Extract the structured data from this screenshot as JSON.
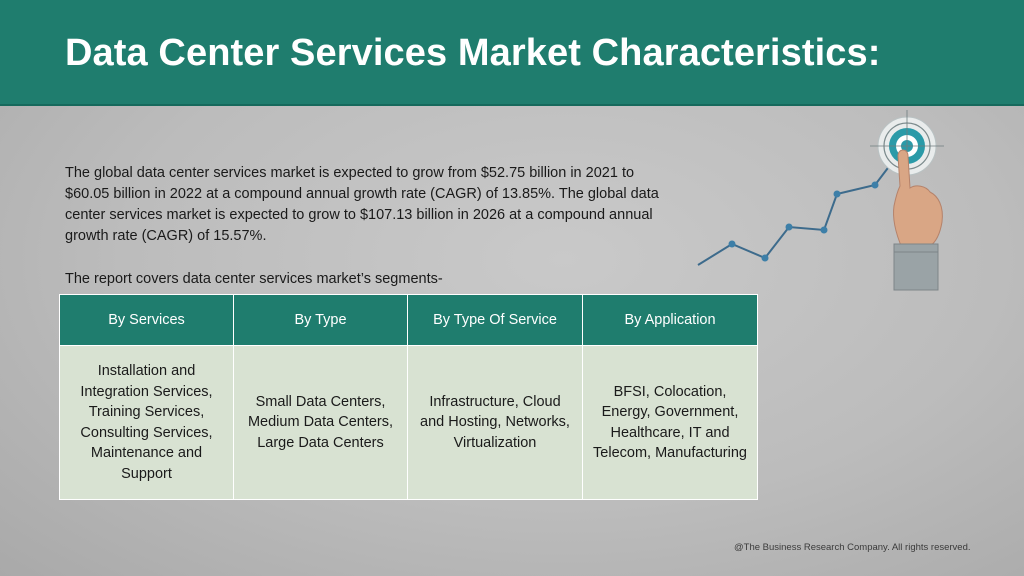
{
  "slide": {
    "title": "Data Center Services Market Characteristics:",
    "intro": "The global data center services market is expected to grow from $52.75 billion in 2021 to $60.05 billion in 2022 at a compound annual growth rate (CAGR) of 13.85%. The global data center services market is expected to grow to $107.13 billion in 2026 at a compound annual growth rate (CAGR) of 15.57%.",
    "segments_intro": "The report covers data center services market’s segments-",
    "footer": "@The Business Research Company. All rights reserved."
  },
  "table": {
    "headers": [
      "By Services",
      "By Type",
      "By Type Of Service",
      "By Application"
    ],
    "cells": [
      "Installation and Integration Services, Training Services, Consulting Services, Maintenance and Support",
      "Small Data Centers, Medium Data Centers, Large Data Centers",
      "Infrastructure, Cloud and Hosting, Networks, Virtualization",
      "BFSI, Colocation, Energy, Government, Healthcare, IT and Telecom, Manufacturing"
    ]
  },
  "graphic": {
    "description_icon": "growth-line-target-hand-icon",
    "colors": {
      "header": "#1f7d6e",
      "cell": "#d8e2d2",
      "line": "#3d6b8c",
      "target": "#2a9aa8"
    }
  }
}
